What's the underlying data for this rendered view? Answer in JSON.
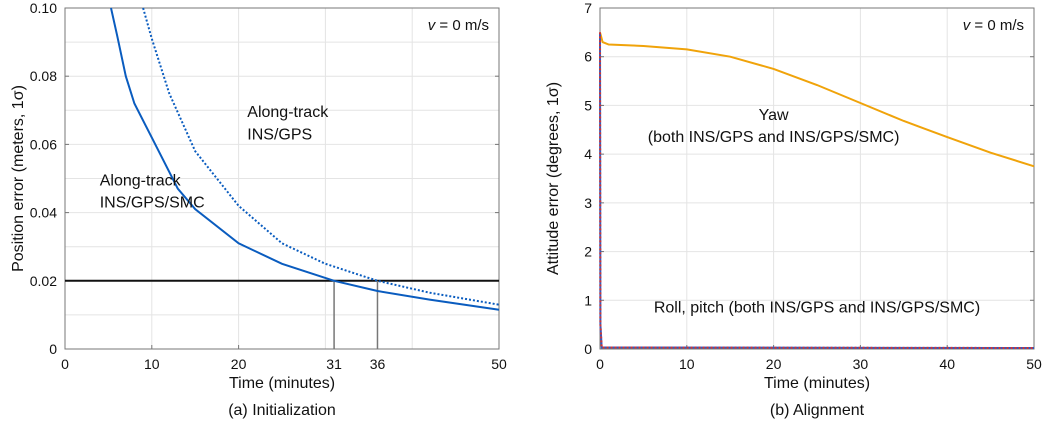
{
  "chart_data": [
    {
      "type": "line",
      "caption": "(a) Initialization",
      "xlabel": "Time (minutes)",
      "ylabel": "Position error (meters, 1σ)",
      "xlim": [
        0,
        50
      ],
      "ylim": [
        0,
        0.1
      ],
      "xticks": [
        0,
        10,
        20,
        31,
        36,
        50
      ],
      "yticks": [
        0,
        0.02,
        0.04,
        0.06,
        0.08,
        0.1
      ],
      "ytick_labels": [
        "0",
        "0.02",
        "0.04",
        "0.06",
        "0.08",
        "0.10"
      ],
      "xgrid": [
        10,
        20,
        30,
        40
      ],
      "ygrid": [
        0.01,
        0.02,
        0.03,
        0.04,
        0.05,
        0.06,
        0.07,
        0.08,
        0.09
      ],
      "grid": true,
      "annotation": "v = 0 m/s",
      "annotation_var": "v",
      "annotation_rest": " = 0 m/s",
      "threshold": 0.02,
      "crossings": [
        31,
        36
      ],
      "series": [
        {
          "name": "Along-track INS/GPS/SMC",
          "label_lines": [
            "Along-track",
            "INS/GPS/SMC"
          ],
          "style": "solid",
          "color": "#0a5cbf",
          "x": [
            5.3,
            6,
            7,
            8,
            10,
            13,
            15,
            20,
            25,
            31,
            36,
            42,
            50
          ],
          "y": [
            0.1,
            0.092,
            0.08,
            0.072,
            0.062,
            0.047,
            0.041,
            0.031,
            0.025,
            0.02,
            0.017,
            0.0145,
            0.0115
          ]
        },
        {
          "name": "Along-track INS/GPS",
          "label_lines": [
            "Along-track",
            "INS/GPS"
          ],
          "style": "dotted",
          "color": "#0a5cbf",
          "x": [
            9,
            10,
            12,
            15,
            20,
            25,
            30,
            36,
            42,
            50
          ],
          "y": [
            0.1,
            0.091,
            0.075,
            0.058,
            0.042,
            0.031,
            0.025,
            0.02,
            0.0165,
            0.013
          ]
        }
      ]
    },
    {
      "type": "line",
      "caption": "(b) Alignment",
      "xlabel": "Time (minutes)",
      "ylabel": "Attitude error (degrees, 1σ)",
      "xlim": [
        0,
        50
      ],
      "ylim": [
        0,
        7
      ],
      "xticks": [
        0,
        10,
        20,
        30,
        40,
        50
      ],
      "yticks": [
        0,
        1,
        2,
        3,
        4,
        5,
        6,
        7
      ],
      "ytick_labels": [
        "0",
        "1",
        "2",
        "3",
        "4",
        "5",
        "6",
        "7"
      ],
      "xgrid": [
        10,
        20,
        30,
        40
      ],
      "ygrid": [
        1,
        2,
        3,
        4,
        5,
        6
      ],
      "grid": true,
      "annotation": "v = 0 m/s",
      "annotation_var": "v",
      "annotation_rest": " = 0 m/s",
      "series": [
        {
          "name": "Yaw",
          "label_lines": [
            "Yaw",
            "(both INS/GPS and INS/GPS/SMC)"
          ],
          "style": "solid",
          "color": "#f0a30a",
          "x": [
            0,
            0.3,
            1,
            5,
            10,
            15,
            20,
            25,
            30,
            35,
            40,
            45,
            50
          ],
          "y": [
            6.5,
            6.3,
            6.25,
            6.22,
            6.15,
            6.0,
            5.75,
            5.42,
            5.05,
            4.68,
            4.35,
            4.03,
            3.75
          ]
        },
        {
          "name": "Roll, pitch",
          "label_lines": [
            "Roll, pitch (both INS/GPS and INS/GPS/SMC)"
          ],
          "style": "dotted",
          "color": "#d9342b",
          "x": [
            0,
            0.05,
            0.2,
            50
          ],
          "y": [
            6.5,
            0.5,
            0.03,
            0.02
          ]
        }
      ]
    }
  ]
}
